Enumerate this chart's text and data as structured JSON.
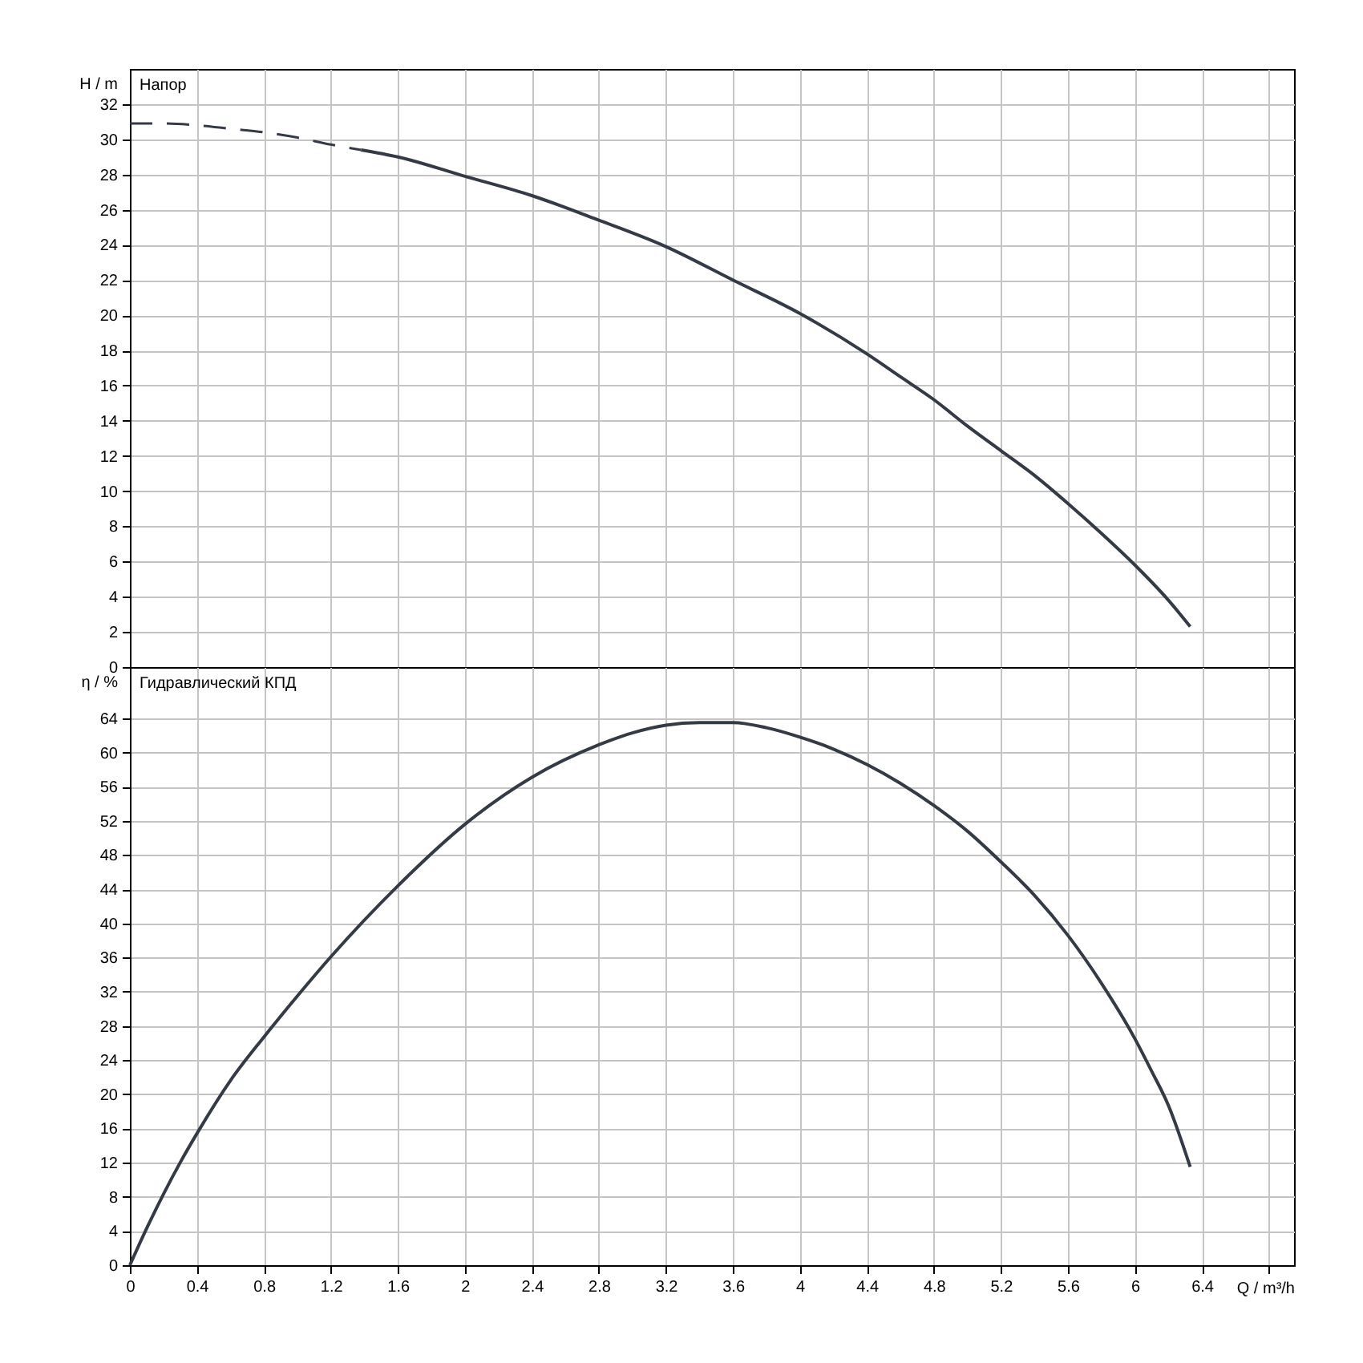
{
  "chart_data": [
    {
      "type": "line",
      "title": "Напор",
      "ylabel": "H / m",
      "xlim": [
        0,
        6.95
      ],
      "ylim": [
        0,
        34
      ],
      "xticks": [
        0,
        0.4,
        0.8,
        1.2,
        1.6,
        2,
        2.4,
        2.8,
        3.2,
        3.6,
        4,
        4.4,
        4.8,
        5.2,
        5.6,
        6,
        6.4,
        {
          "value": 6.8,
          "label": null
        }
      ],
      "yticks": [
        0,
        2,
        4,
        6,
        8,
        10,
        12,
        14,
        16,
        18,
        20,
        22,
        24,
        26,
        28,
        30,
        32
      ],
      "grid": true,
      "tick_labels": "y",
      "series": [
        {
          "color": "#343a46",
          "line_style": "dashed",
          "x": [
            0,
            0.2,
            0.4,
            0.6,
            0.8,
            1.0,
            1.2,
            1.38
          ],
          "values": [
            30.9,
            30.9,
            30.8,
            30.6,
            30.4,
            30.1,
            29.7,
            29.4
          ]
        },
        {
          "color": "#343a46",
          "line_style": "solid",
          "x": [
            1.38,
            1.6,
            2.0,
            2.4,
            2.8,
            3.2,
            3.6,
            4.0,
            4.4,
            4.6,
            4.8,
            5.0,
            5.2,
            5.4,
            5.6,
            5.8,
            6.0,
            6.2,
            6.33
          ],
          "values": [
            29.4,
            29.0,
            27.9,
            26.8,
            25.4,
            23.9,
            22.0,
            20.1,
            17.8,
            16.5,
            15.2,
            13.7,
            12.3,
            10.9,
            9.3,
            7.6,
            5.8,
            3.8,
            2.3
          ]
        }
      ]
    },
    {
      "type": "line",
      "title": "Гидравлический КПД",
      "xlabel": "Q / m³/h",
      "ylabel": "η / %",
      "xlim": [
        0,
        6.95
      ],
      "ylim": [
        0,
        70
      ],
      "xticks": [
        0,
        0.4,
        0.8,
        1.2,
        1.6,
        2,
        2.4,
        2.8,
        3.2,
        3.6,
        4,
        4.4,
        4.8,
        5.2,
        5.6,
        6,
        6.4,
        {
          "value": 6.8,
          "label": null
        }
      ],
      "yticks": [
        0,
        4,
        8,
        12,
        16,
        20,
        24,
        28,
        32,
        36,
        40,
        44,
        48,
        52,
        56,
        60,
        64
      ],
      "grid": true,
      "series": [
        {
          "color": "#343a46",
          "line_style": "solid",
          "x": [
            0,
            0.1,
            0.2,
            0.3,
            0.4,
            0.6,
            0.8,
            1.0,
            1.2,
            1.6,
            2.0,
            2.4,
            2.8,
            3.0,
            3.2,
            3.4,
            3.6,
            3.8,
            4.0,
            4.2,
            4.4,
            4.6,
            4.8,
            5.0,
            5.2,
            5.4,
            5.6,
            5.8,
            6.0,
            6.1,
            6.2,
            6.33
          ],
          "values": [
            0,
            4.3,
            8.3,
            12.0,
            15.4,
            21.6,
            26.7,
            31.5,
            36.1,
            44.4,
            51.6,
            57.1,
            60.9,
            62.3,
            63.2,
            63.5,
            63.5,
            62.9,
            61.8,
            60.4,
            58.6,
            56.4,
            53.8,
            50.8,
            47.2,
            43.3,
            38.6,
            33.0,
            26.5,
            22.7,
            18.7,
            11.5
          ]
        }
      ]
    }
  ]
}
